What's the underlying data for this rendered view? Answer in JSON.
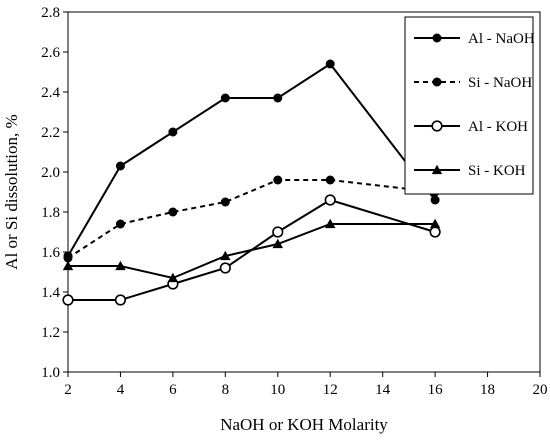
{
  "chart_data": {
    "type": "line",
    "xlabel": "NaOH or KOH Molarity",
    "ylabel": "Al or Si dissolution, %",
    "xlim": [
      2,
      20
    ],
    "ylim": [
      1.0,
      2.8
    ],
    "x_ticks": [
      "2",
      "4",
      "6",
      "8",
      "10",
      "12",
      "14",
      "16",
      "18",
      "20"
    ],
    "y_ticks": [
      "1.0",
      "1.2",
      "1.4",
      "1.6",
      "1.8",
      "2.0",
      "2.2",
      "2.4",
      "2.6",
      "2.8"
    ],
    "grid": false,
    "legend_position": "top-right",
    "x": [
      2,
      4,
      6,
      8,
      10,
      12,
      16
    ],
    "series": [
      {
        "name": "Al - NaOH",
        "values": [
          1.58,
          2.03,
          2.2,
          2.37,
          2.37,
          2.54,
          1.86
        ],
        "line": "solid",
        "marker": "filled-circle"
      },
      {
        "name": "Si - NaOH",
        "values": [
          1.57,
          1.74,
          1.8,
          1.85,
          1.96,
          1.96,
          1.9
        ],
        "line": "dashed",
        "marker": "filled-circle"
      },
      {
        "name": "Al - KOH",
        "values": [
          1.36,
          1.36,
          1.44,
          1.52,
          1.7,
          1.86,
          1.7
        ],
        "line": "solid",
        "marker": "open-circle"
      },
      {
        "name": "Si - KOH",
        "values": [
          1.53,
          1.53,
          1.47,
          1.58,
          1.64,
          1.74,
          1.74
        ],
        "line": "solid",
        "marker": "filled-triangle"
      }
    ]
  }
}
